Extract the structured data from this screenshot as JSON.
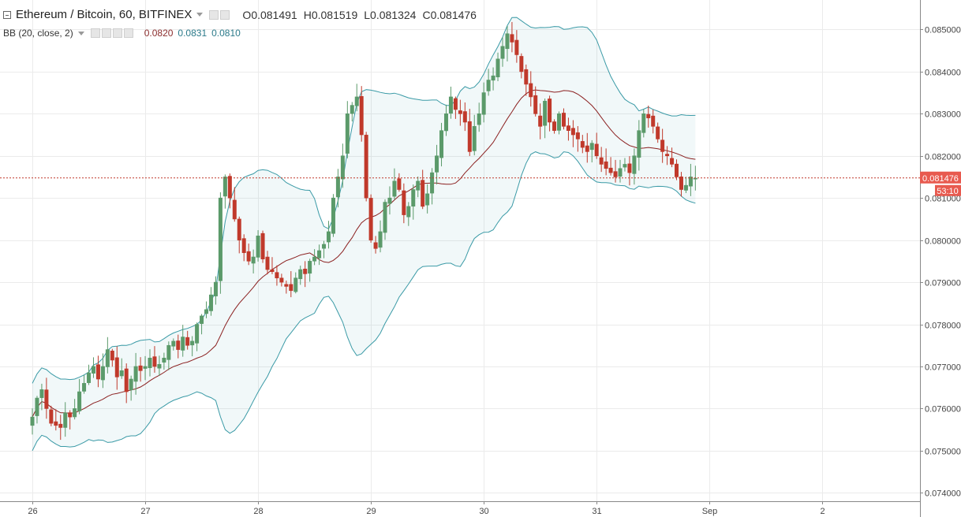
{
  "header": {
    "symbol": "Ethereum / Bitcoin, 60, BITFINEX",
    "ohlc": [
      {
        "key": "O",
        "value": "0.081491"
      },
      {
        "key": "H",
        "value": "0.081519"
      },
      {
        "key": "L",
        "value": "0.081324"
      },
      {
        "key": "C",
        "value": "0.081476"
      }
    ]
  },
  "indicator": {
    "name": "BB (20, close, 2)",
    "values": [
      "0.0820",
      "0.0831",
      "0.0810"
    ]
  },
  "price_badge": {
    "price": "0.081476",
    "countdown": "53:10"
  },
  "colors": {
    "up": "#5b9a6a",
    "down": "#c0392b",
    "band": "#3a9aa6",
    "basis": "#8b2020",
    "fill": "rgba(58,154,166,0.07)",
    "last_line": "#c0392b"
  },
  "chart_data": {
    "type": "candlestick",
    "title": "Ethereum / Bitcoin, 60, BITFINEX",
    "ylim": [
      0.0738,
      0.0857
    ],
    "y_ticks": [
      "0.074000",
      "0.075000",
      "0.076000",
      "0.077000",
      "0.078000",
      "0.079000",
      "0.080000",
      "0.081000",
      "0.082000",
      "0.083000",
      "0.084000",
      "0.085000"
    ],
    "x_ticks": [
      {
        "label": "26",
        "index": 0
      },
      {
        "label": "27",
        "index": 24
      },
      {
        "label": "28",
        "index": 48
      },
      {
        "label": "29",
        "index": 72
      },
      {
        "label": "30",
        "index": 96
      },
      {
        "label": "31",
        "index": 120
      },
      {
        "label": "Sep",
        "index": 144
      },
      {
        "label": "2",
        "index": 168
      }
    ],
    "last_close": 0.081476,
    "candle_closes": [
      0.0758,
      0.07625,
      0.07645,
      0.076,
      0.07565,
      0.0756,
      0.07555,
      0.0759,
      0.0758,
      0.076,
      0.0764,
      0.0766,
      0.07685,
      0.077,
      0.0767,
      0.077,
      0.0774,
      0.07715,
      0.07675,
      0.0769,
      0.0764,
      0.0767,
      0.077,
      0.0769,
      0.077,
      0.0772,
      0.077,
      0.07705,
      0.0772,
      0.0775,
      0.0776,
      0.0774,
      0.0777,
      0.0775,
      0.0776,
      0.078,
      0.0782,
      0.07835,
      0.0787,
      0.079,
      0.081,
      0.0815,
      0.081,
      0.0805,
      0.08,
      0.0797,
      0.0795,
      0.0796,
      0.0801,
      0.07955,
      0.0793,
      0.07925,
      0.0791,
      0.079,
      0.0789,
      0.0788,
      0.0791,
      0.0793,
      0.0792,
      0.0795,
      0.0796,
      0.07975,
      0.0799,
      0.0802,
      0.081,
      0.0815,
      0.082,
      0.083,
      0.0832,
      0.0834,
      0.0825,
      0.081,
      0.08,
      0.0798,
      0.0802,
      0.0809,
      0.081,
      0.0814,
      0.0812,
      0.0806,
      0.0808,
      0.0812,
      0.0814,
      0.0808,
      0.0811,
      0.0816,
      0.082,
      0.0826,
      0.083,
      0.0834,
      0.0831,
      0.083,
      0.0828,
      0.0821,
      0.0827,
      0.083,
      0.0835,
      0.0838,
      0.0839,
      0.0843,
      0.0846,
      0.0849,
      0.0847,
      0.0844,
      0.084,
      0.0837,
      0.0834,
      0.083,
      0.0827,
      0.0833,
      0.0828,
      0.0826,
      0.083,
      0.0827,
      0.0826,
      0.0825,
      0.0824,
      0.0822,
      0.0821,
      0.0823,
      0.082,
      0.0818,
      0.0817,
      0.0816,
      0.0815,
      0.0817,
      0.0818,
      0.0816,
      0.082,
      0.0826,
      0.083,
      0.0829,
      0.0827,
      0.0824,
      0.0821,
      0.082,
      0.0818,
      0.0815,
      0.0812,
      0.0813,
      0.0815,
      0.08147
    ]
  }
}
